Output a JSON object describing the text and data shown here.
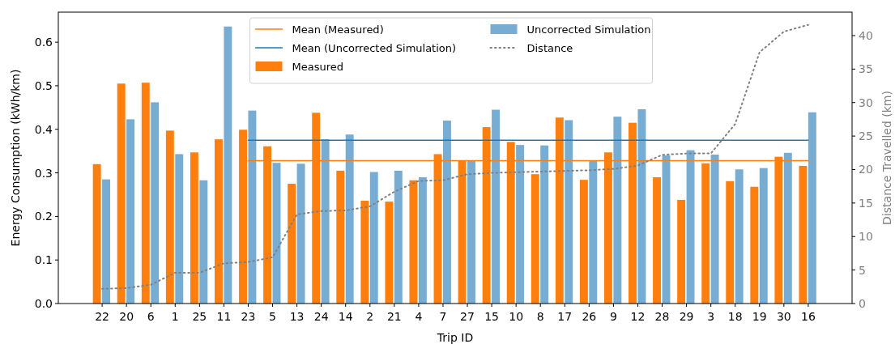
{
  "chart_data": {
    "type": "bar",
    "xlabel": "Trip ID",
    "ylabel": "Energy Consumption (kWh/km)",
    "y2label": "Distance Travelled (km)",
    "categories": [
      "22",
      "20",
      "6",
      "1",
      "25",
      "11",
      "23",
      "5",
      "13",
      "24",
      "14",
      "2",
      "21",
      "4",
      "7",
      "27",
      "15",
      "10",
      "8",
      "17",
      "26",
      "9",
      "12",
      "28",
      "29",
      "3",
      "18",
      "19",
      "30",
      "16"
    ],
    "series": [
      {
        "name": "Mean (Measured)",
        "type": "line",
        "color": "#ff7f0e",
        "line_style": "solid",
        "values": [
          null,
          null,
          null,
          null,
          null,
          null,
          0.328,
          0.328,
          0.328,
          0.328,
          0.328,
          0.328,
          0.328,
          0.328,
          0.328,
          0.328,
          0.328,
          0.328,
          0.328,
          0.328,
          0.328,
          0.328,
          0.328,
          0.328,
          0.328,
          0.328,
          0.328,
          0.328,
          0.328,
          0.328
        ]
      },
      {
        "name": "Mean (Uncorrected Simulation)",
        "type": "line",
        "color": "#1f77b4",
        "line_style": "solid",
        "values": [
          null,
          null,
          null,
          null,
          null,
          null,
          0.375,
          0.375,
          0.375,
          0.375,
          0.375,
          0.375,
          0.375,
          0.375,
          0.375,
          0.375,
          0.375,
          0.375,
          0.375,
          0.375,
          0.375,
          0.375,
          0.375,
          0.375,
          0.375,
          0.375,
          0.375,
          0.375,
          0.375,
          0.375
        ]
      },
      {
        "name": "Measured",
        "color": "#ff7f0e",
        "values": [
          0.32,
          0.505,
          0.507,
          0.397,
          0.347,
          0.377,
          0.399,
          0.361,
          0.275,
          0.438,
          0.305,
          0.236,
          0.234,
          0.283,
          0.343,
          0.328,
          0.405,
          0.371,
          0.297,
          0.427,
          0.284,
          0.347,
          0.415,
          0.29,
          0.238,
          0.322,
          0.281,
          0.268,
          0.337,
          0.316
        ]
      },
      {
        "name": "Uncorrected Simulation",
        "color": "#77acd3",
        "values": [
          0.285,
          0.423,
          0.462,
          0.343,
          0.283,
          0.636,
          0.443,
          0.323,
          0.321,
          0.377,
          0.388,
          0.302,
          0.305,
          0.29,
          0.42,
          0.328,
          0.445,
          0.364,
          0.363,
          0.421,
          0.328,
          0.429,
          0.446,
          0.34,
          0.352,
          0.342,
          0.308,
          0.311,
          0.346,
          0.439
        ]
      },
      {
        "name": "Distance",
        "type": "line",
        "axis": "y2",
        "color": "#808080",
        "line_style": "dotted",
        "values": [
          2.2,
          2.3,
          2.8,
          4.6,
          4.6,
          6.0,
          6.2,
          6.9,
          13.3,
          13.8,
          13.9,
          14.5,
          16.7,
          18.3,
          18.4,
          19.3,
          19.5,
          19.6,
          19.7,
          19.8,
          19.9,
          20.1,
          20.6,
          22.2,
          22.4,
          22.4,
          26.8,
          37.5,
          40.6,
          41.6
        ]
      }
    ],
    "ylim": [
      0,
      0.669
    ],
    "yticks": [
      {
        "value": 0,
        "label": "0.0"
      },
      0.1,
      0.2,
      0.3,
      0.4,
      0.5,
      0.6
    ],
    "y2lim": [
      0,
      43.5
    ],
    "y2ticks": [
      0,
      5,
      10,
      15,
      20,
      25,
      30,
      35,
      40
    ],
    "legend": "top",
    "grid": false,
    "marker": "none"
  }
}
